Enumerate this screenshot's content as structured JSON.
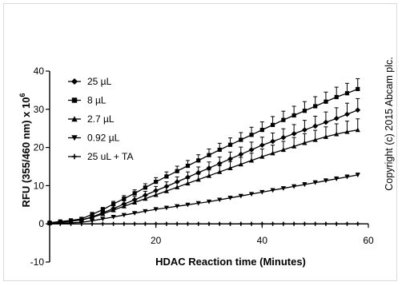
{
  "chart_data": {
    "type": "line",
    "xlabel": "HDAC Reaction time (Minutes)",
    "ylabel_main": "RFU (355/460 nm) x 10",
    "ylabel_exp": "6",
    "xlim": [
      0,
      60
    ],
    "ylim": [
      -10,
      40
    ],
    "xticks": [
      20,
      40,
      60
    ],
    "yticks": [
      -10,
      0,
      10,
      20,
      30,
      40
    ],
    "xtick_labels": [
      "20",
      "40",
      "60"
    ],
    "ytick_labels": [
      "-10",
      "0",
      "10",
      "20",
      "30",
      "40"
    ],
    "grid": false,
    "legend_position": "top-left",
    "x": [
      0,
      2,
      4,
      6,
      8,
      10,
      12,
      14,
      16,
      18,
      20,
      22,
      24,
      26,
      28,
      30,
      32,
      34,
      36,
      38,
      40,
      42,
      44,
      46,
      48,
      50,
      52,
      54,
      56,
      58
    ],
    "series": [
      {
        "name": "25 µL",
        "marker": "diamond",
        "values": [
          0.2,
          0.5,
          0.8,
          1.0,
          1.8,
          2.9,
          4.0,
          5.2,
          6.3,
          7.5,
          8.7,
          9.8,
          11.0,
          12.2,
          13.4,
          14.6,
          15.8,
          17.0,
          18.2,
          19.4,
          20.6,
          21.6,
          22.6,
          23.6,
          24.6,
          25.6,
          26.6,
          27.6,
          28.7,
          29.8
        ],
        "errors": [
          0.3,
          0.3,
          0.3,
          0.3,
          0.5,
          0.5,
          0.7,
          0.8,
          0.9,
          1.0,
          1.1,
          1.2,
          1.3,
          1.4,
          1.5,
          1.6,
          1.7,
          1.8,
          1.9,
          2.0,
          2.1,
          2.2,
          2.3,
          2.4,
          2.5,
          2.6,
          2.7,
          2.8,
          2.9,
          3.0
        ]
      },
      {
        "name": "8 µL",
        "marker": "square",
        "values": [
          0.3,
          0.6,
          0.9,
          1.3,
          2.5,
          3.7,
          5.2,
          6.6,
          8.0,
          9.5,
          11.0,
          12.4,
          13.8,
          15.2,
          16.6,
          18.0,
          19.4,
          20.7,
          22.0,
          23.3,
          24.6,
          25.9,
          27.2,
          28.4,
          29.6,
          30.8,
          32.0,
          33.2,
          34.2,
          35.3
        ],
        "errors": [
          0.3,
          0.3,
          0.3,
          0.4,
          0.5,
          0.6,
          0.7,
          0.8,
          0.9,
          1.0,
          1.1,
          1.2,
          1.3,
          1.4,
          1.5,
          1.6,
          1.7,
          1.8,
          1.9,
          2.0,
          2.1,
          2.2,
          2.3,
          2.4,
          2.4,
          2.5,
          2.5,
          2.6,
          2.6,
          2.7
        ]
      },
      {
        "name": "2.7 µL",
        "marker": "triangle-up",
        "values": [
          0.2,
          0.4,
          0.7,
          1.0,
          1.7,
          2.6,
          3.6,
          4.6,
          5.6,
          6.6,
          7.6,
          8.6,
          9.6,
          10.6,
          11.6,
          12.6,
          13.6,
          14.6,
          15.6,
          16.6,
          17.6,
          18.5,
          19.4,
          20.3,
          21.2,
          22.0,
          22.8,
          23.5,
          24.1,
          24.6
        ],
        "errors": [
          0.3,
          0.3,
          0.3,
          0.3,
          0.4,
          0.5,
          0.6,
          0.7,
          0.8,
          0.9,
          1.0,
          1.1,
          1.2,
          1.3,
          1.4,
          1.5,
          1.6,
          1.7,
          1.8,
          1.9,
          2.0,
          2.1,
          2.2,
          2.3,
          2.4,
          2.5,
          2.6,
          2.7,
          2.8,
          2.9
        ]
      },
      {
        "name": "0.92 µL",
        "marker": "triangle-down",
        "values": [
          0.1,
          0.2,
          0.3,
          0.4,
          0.8,
          1.3,
          1.8,
          2.3,
          2.8,
          3.3,
          3.8,
          4.2,
          4.6,
          5.0,
          5.4,
          5.8,
          6.3,
          6.8,
          7.3,
          7.8,
          8.3,
          8.8,
          9.3,
          9.8,
          10.3,
          10.8,
          11.3,
          11.8,
          12.3,
          12.8
        ],
        "errors": [
          0.2,
          0.2,
          0.2,
          0.2,
          0.2,
          0.3,
          0.3,
          0.3,
          0.3,
          0.3,
          0.3,
          0.3,
          0.3,
          0.3,
          0.4,
          0.4,
          0.4,
          0.4,
          0.4,
          0.4,
          0.4,
          0.4,
          0.4,
          0.4,
          0.5,
          0.5,
          0.5,
          0.5,
          0.5,
          0.5
        ]
      },
      {
        "name": "25 uL + TA",
        "marker": "cross",
        "values": [
          0,
          0,
          0,
          0,
          0,
          0,
          0,
          0,
          0,
          0,
          0,
          0,
          0,
          0,
          0,
          0,
          0,
          0,
          0,
          0,
          0,
          0,
          0,
          0,
          0,
          0,
          0,
          0,
          0,
          0
        ],
        "errors": [
          0.2,
          0.2,
          0.2,
          0.2,
          0.2,
          0.2,
          0.2,
          0.2,
          0.2,
          0.2,
          0.2,
          0.2,
          0.2,
          0.2,
          0.2,
          0.2,
          0.2,
          0.2,
          0.2,
          0.2,
          0.2,
          0.2,
          0.2,
          0.2,
          0.2,
          0.2,
          0.2,
          0.2,
          0.2,
          0.2
        ]
      }
    ]
  },
  "copyright": "Copyright (c) 2015 Abcam plc."
}
